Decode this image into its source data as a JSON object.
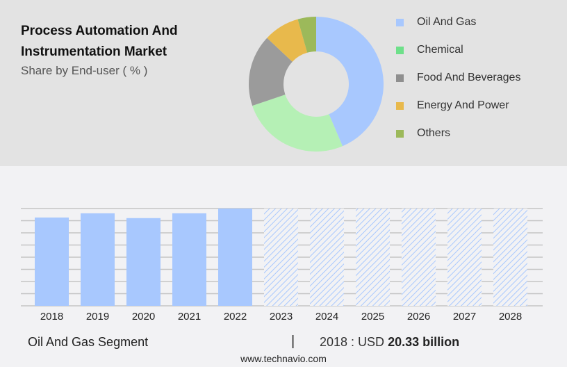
{
  "title": "Process Automation And Instrumentation Market",
  "subtitle": "Share by End-user ( % )",
  "chart_data": [
    {
      "type": "pie",
      "donut": true,
      "categories": [
        "Oil And Gas",
        "Chemical",
        "Food And Beverages",
        "Energy And Power",
        "Others"
      ],
      "values": [
        43.6,
        26.2,
        17.2,
        8.6,
        4.4
      ],
      "colors": [
        "#a8c8fe",
        "#b5f0b5",
        "#9b9b9b",
        "#e8b94c",
        "#9cb95a"
      ],
      "legend_colors": [
        "#a8c8fe",
        "#6ee08a",
        "#8f8f8f",
        "#e8b94c",
        "#9cb95a"
      ],
      "legend": "right"
    },
    {
      "type": "bar",
      "categories": [
        "2018",
        "2019",
        "2020",
        "2021",
        "2022",
        "2023",
        "2024",
        "2025",
        "2026",
        "2027",
        "2028"
      ],
      "values": [
        20.33,
        21.3,
        20.2,
        21.3,
        22.4,
        22.4,
        22.4,
        22.4,
        22.4,
        22.4,
        22.4
      ],
      "forecast_from": "2023",
      "forecast_style": "hatched",
      "ylim": [
        0,
        22.4
      ],
      "grid": true,
      "color": "#a8c8fe"
    }
  ],
  "footer": {
    "segment": "Oil And Gas Segment",
    "separator": "|",
    "year_label": "2018 : USD",
    "value": "20.33 billion",
    "url": "www.technavio.com"
  }
}
